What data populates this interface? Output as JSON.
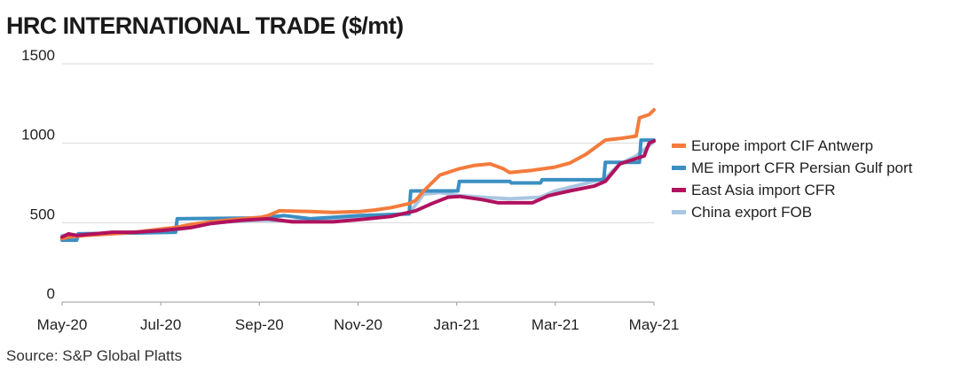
{
  "title": "HRC INTERNATIONAL TRADE ($/mt)",
  "source": "Source: S&P Global Platts",
  "chart_data": {
    "type": "line",
    "title": "HRC INTERNATIONAL TRADE ($/mt)",
    "xlabel": "",
    "ylabel": "",
    "ylim": [
      0,
      1500
    ],
    "yticks": [
      0,
      500,
      1000,
      1500
    ],
    "xlim": [
      "2020-05-01",
      "2021-05-01"
    ],
    "xtick_labels": [
      "May-20",
      "Jul-20",
      "Sep-20",
      "Nov-20",
      "Jan-21",
      "Mar-21",
      "May-21"
    ],
    "grid": "horizontal",
    "legend_position": "right",
    "series": [
      {
        "name": "Europe import CIF Antwerp",
        "color": "#f47b3c",
        "points": [
          [
            "2020-05-01",
            400
          ],
          [
            "2020-05-05",
            410
          ],
          [
            "2020-05-15",
            420
          ],
          [
            "2020-06-01",
            430
          ],
          [
            "2020-06-15",
            440
          ],
          [
            "2020-07-01",
            460
          ],
          [
            "2020-07-10",
            470
          ],
          [
            "2020-07-20",
            490
          ],
          [
            "2020-08-01",
            505
          ],
          [
            "2020-08-15",
            520
          ],
          [
            "2020-09-01",
            535
          ],
          [
            "2020-09-05",
            545
          ],
          [
            "2020-09-12",
            575
          ],
          [
            "2020-10-01",
            570
          ],
          [
            "2020-10-15",
            565
          ],
          [
            "2020-11-01",
            570
          ],
          [
            "2020-11-10",
            580
          ],
          [
            "2020-11-20",
            595
          ],
          [
            "2020-12-01",
            620
          ],
          [
            "2020-12-05",
            640
          ],
          [
            "2020-12-10",
            700
          ],
          [
            "2020-12-20",
            800
          ],
          [
            "2021-01-01",
            840
          ],
          [
            "2021-01-10",
            860
          ],
          [
            "2021-01-20",
            870
          ],
          [
            "2021-01-28",
            840
          ],
          [
            "2021-02-01",
            815
          ],
          [
            "2021-02-15",
            830
          ],
          [
            "2021-03-01",
            850
          ],
          [
            "2021-03-10",
            875
          ],
          [
            "2021-03-20",
            930
          ],
          [
            "2021-04-01",
            1020
          ],
          [
            "2021-04-10",
            1030
          ],
          [
            "2021-04-20",
            1045
          ],
          [
            "2021-04-22",
            1160
          ],
          [
            "2021-04-28",
            1180
          ],
          [
            "2021-05-01",
            1210
          ]
        ]
      },
      {
        "name": "ME import CFR Persian Gulf port",
        "color": "#3b8fc2",
        "points": [
          [
            "2020-05-01",
            390
          ],
          [
            "2020-05-10",
            390
          ],
          [
            "2020-05-11",
            430
          ],
          [
            "2020-06-15",
            435
          ],
          [
            "2020-07-10",
            440
          ],
          [
            "2020-07-11",
            525
          ],
          [
            "2020-09-01",
            530
          ],
          [
            "2020-09-15",
            545
          ],
          [
            "2020-10-01",
            525
          ],
          [
            "2020-11-01",
            545
          ],
          [
            "2020-12-01",
            555
          ],
          [
            "2020-12-02",
            700
          ],
          [
            "2020-12-31",
            700
          ],
          [
            "2021-01-01",
            760
          ],
          [
            "2021-02-01",
            760
          ],
          [
            "2021-02-02",
            750
          ],
          [
            "2021-02-20",
            750
          ],
          [
            "2021-02-21",
            770
          ],
          [
            "2021-03-31",
            770
          ],
          [
            "2021-04-01",
            880
          ],
          [
            "2021-04-22",
            880
          ],
          [
            "2021-04-23",
            1020
          ],
          [
            "2021-05-01",
            1020
          ]
        ]
      },
      {
        "name": "East Asia import CFR",
        "color": "#b0125e",
        "points": [
          [
            "2020-05-01",
            410
          ],
          [
            "2020-05-05",
            430
          ],
          [
            "2020-05-10",
            420
          ],
          [
            "2020-06-01",
            440
          ],
          [
            "2020-06-15",
            440
          ],
          [
            "2020-07-01",
            450
          ],
          [
            "2020-07-20",
            470
          ],
          [
            "2020-08-01",
            495
          ],
          [
            "2020-08-20",
            515
          ],
          [
            "2020-09-05",
            525
          ],
          [
            "2020-09-20",
            505
          ],
          [
            "2020-10-15",
            505
          ],
          [
            "2020-11-01",
            520
          ],
          [
            "2020-11-20",
            540
          ],
          [
            "2020-12-05",
            575
          ],
          [
            "2020-12-15",
            620
          ],
          [
            "2020-12-25",
            660
          ],
          [
            "2021-01-01",
            665
          ],
          [
            "2021-01-15",
            645
          ],
          [
            "2021-01-25",
            625
          ],
          [
            "2021-02-15",
            625
          ],
          [
            "2021-02-25",
            670
          ],
          [
            "2021-03-10",
            700
          ],
          [
            "2021-03-25",
            730
          ],
          [
            "2021-04-01",
            760
          ],
          [
            "2021-04-10",
            870
          ],
          [
            "2021-04-25",
            920
          ],
          [
            "2021-04-28",
            1000
          ],
          [
            "2021-05-01",
            1015
          ]
        ]
      },
      {
        "name": "China export FOB",
        "color": "#a9c6e2",
        "points": [
          [
            "2020-05-01",
            420
          ],
          [
            "2020-05-20",
            425
          ],
          [
            "2020-06-15",
            440
          ],
          [
            "2020-07-10",
            455
          ],
          [
            "2020-07-20",
            470
          ],
          [
            "2020-08-01",
            500
          ],
          [
            "2020-09-01",
            515
          ],
          [
            "2020-09-20",
            510
          ],
          [
            "2020-11-01",
            530
          ],
          [
            "2020-12-01",
            560
          ],
          [
            "2020-12-10",
            680
          ],
          [
            "2020-12-20",
            690
          ],
          [
            "2021-01-01",
            670
          ],
          [
            "2021-01-15",
            660
          ],
          [
            "2021-02-01",
            650
          ],
          [
            "2021-02-20",
            660
          ],
          [
            "2021-03-01",
            700
          ],
          [
            "2021-03-25",
            760
          ],
          [
            "2021-04-01",
            780
          ],
          [
            "2021-04-10",
            870
          ],
          [
            "2021-04-20",
            920
          ],
          [
            "2021-05-01",
            1010
          ]
        ]
      }
    ]
  }
}
